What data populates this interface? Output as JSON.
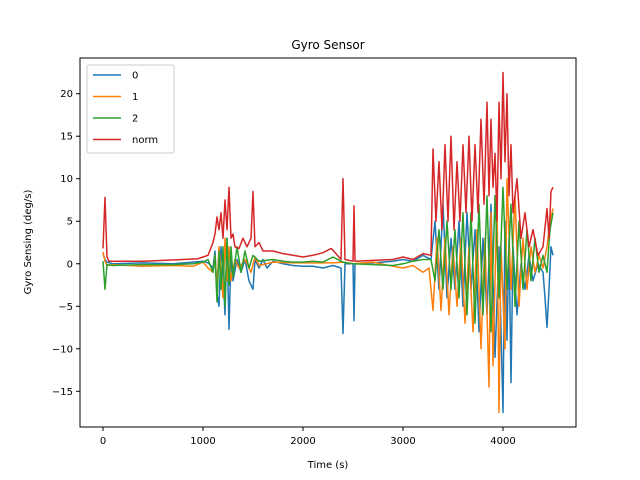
{
  "chart_data": {
    "type": "line",
    "title": "Gyro Sensor",
    "xlabel": "Time (s)",
    "ylabel": "Gyro Sensing (deg/s)",
    "xlim": [
      -230,
      4730
    ],
    "ylim": [
      -19.2,
      24.2
    ],
    "xticks": [
      0,
      1000,
      2000,
      3000,
      4000
    ],
    "yticks": [
      -15,
      -10,
      -5,
      0,
      5,
      10,
      15,
      20
    ],
    "grid": false,
    "legend_position": "top-left",
    "series": [
      {
        "name": "0",
        "color": "#1f77b4",
        "points": [
          [
            0,
            1.2
          ],
          [
            20,
            0.5
          ],
          [
            40,
            0.2
          ],
          [
            100,
            0.0
          ],
          [
            400,
            0.1
          ],
          [
            700,
            0.0
          ],
          [
            900,
            0.2
          ],
          [
            1000,
            0.3
          ],
          [
            1050,
            0.1
          ],
          [
            1100,
            -0.5
          ],
          [
            1120,
            1.5
          ],
          [
            1140,
            -3.5
          ],
          [
            1160,
            -5
          ],
          [
            1180,
            2
          ],
          [
            1200,
            -1
          ],
          [
            1220,
            -6
          ],
          [
            1240,
            3
          ],
          [
            1260,
            -7.7
          ],
          [
            1280,
            1
          ],
          [
            1300,
            -2
          ],
          [
            1340,
            0.5
          ],
          [
            1380,
            -1
          ],
          [
            1420,
            0.5
          ],
          [
            1460,
            -2
          ],
          [
            1500,
            -3
          ],
          [
            1520,
            0.5
          ],
          [
            1560,
            -0.5
          ],
          [
            1600,
            0.5
          ],
          [
            1640,
            -0.5
          ],
          [
            1700,
            0.3
          ],
          [
            1800,
            0.0
          ],
          [
            1900,
            -0.2
          ],
          [
            2000,
            -0.3
          ],
          [
            2100,
            -0.3
          ],
          [
            2200,
            -0.5
          ],
          [
            2300,
            -0.2
          ],
          [
            2380,
            -0.5
          ],
          [
            2400,
            -8.2
          ],
          [
            2420,
            0
          ],
          [
            2500,
            0
          ],
          [
            2510,
            -6.7
          ],
          [
            2520,
            0
          ],
          [
            2700,
            0.1
          ],
          [
            2900,
            0.3
          ],
          [
            3000,
            0.5
          ],
          [
            3100,
            0.3
          ],
          [
            3200,
            1
          ],
          [
            3280,
            0.5
          ],
          [
            3320,
            5
          ],
          [
            3360,
            -3
          ],
          [
            3400,
            7
          ],
          [
            3440,
            -4
          ],
          [
            3480,
            3
          ],
          [
            3520,
            -3
          ],
          [
            3560,
            5
          ],
          [
            3600,
            -5
          ],
          [
            3640,
            6
          ],
          [
            3680,
            -3
          ],
          [
            3720,
            4
          ],
          [
            3760,
            -8
          ],
          [
            3800,
            3
          ],
          [
            3840,
            -6
          ],
          [
            3880,
            7
          ],
          [
            3920,
            -11
          ],
          [
            3960,
            2
          ],
          [
            4000,
            -17.5
          ],
          [
            4020,
            5
          ],
          [
            4040,
            -9
          ],
          [
            4060,
            3
          ],
          [
            4080,
            -14
          ],
          [
            4100,
            2
          ],
          [
            4140,
            -6
          ],
          [
            4180,
            0
          ],
          [
            4220,
            -3
          ],
          [
            4260,
            1
          ],
          [
            4300,
            -2
          ],
          [
            4350,
            0
          ],
          [
            4400,
            -1
          ],
          [
            4420,
            -4
          ],
          [
            4440,
            -7.5
          ],
          [
            4460,
            -3
          ],
          [
            4480,
            2
          ],
          [
            4500,
            1
          ]
        ]
      },
      {
        "name": "1",
        "color": "#ff7f0e",
        "points": [
          [
            0,
            1.4
          ],
          [
            20,
            0.3
          ],
          [
            40,
            -0.2
          ],
          [
            100,
            -0.1
          ],
          [
            400,
            -0.3
          ],
          [
            700,
            -0.2
          ],
          [
            900,
            -0.3
          ],
          [
            1000,
            0.2
          ],
          [
            1050,
            -0.5
          ],
          [
            1100,
            -1
          ],
          [
            1120,
            1
          ],
          [
            1140,
            -3
          ],
          [
            1160,
            2
          ],
          [
            1200,
            -4
          ],
          [
            1220,
            3
          ],
          [
            1240,
            -2
          ],
          [
            1260,
            2
          ],
          [
            1280,
            -2
          ],
          [
            1320,
            0.5
          ],
          [
            1360,
            -0.5
          ],
          [
            1420,
            0.5
          ],
          [
            1480,
            -1
          ],
          [
            1520,
            0.8
          ],
          [
            1560,
            -0.2
          ],
          [
            1700,
            0.2
          ],
          [
            1900,
            0.1
          ],
          [
            2100,
            0.1
          ],
          [
            2300,
            0.1
          ],
          [
            2400,
            0.2
          ],
          [
            2500,
            0
          ],
          [
            2700,
            0.2
          ],
          [
            2900,
            -0.3
          ],
          [
            3000,
            -0.5
          ],
          [
            3100,
            -0.2
          ],
          [
            3200,
            -1
          ],
          [
            3260,
            -0.5
          ],
          [
            3300,
            -5.5
          ],
          [
            3340,
            3
          ],
          [
            3380,
            -5.5
          ],
          [
            3420,
            3
          ],
          [
            3460,
            -6
          ],
          [
            3500,
            2
          ],
          [
            3540,
            -5
          ],
          [
            3580,
            3
          ],
          [
            3620,
            -7
          ],
          [
            3660,
            2
          ],
          [
            3700,
            -8
          ],
          [
            3740,
            4
          ],
          [
            3780,
            -10
          ],
          [
            3820,
            3
          ],
          [
            3860,
            -14.5
          ],
          [
            3880,
            6
          ],
          [
            3900,
            -12
          ],
          [
            3940,
            8
          ],
          [
            3960,
            -17.5
          ],
          [
            3980,
            2
          ],
          [
            4020,
            -10
          ],
          [
            4040,
            10
          ],
          [
            4080,
            -3
          ],
          [
            4120,
            8
          ],
          [
            4160,
            -5
          ],
          [
            4200,
            3
          ],
          [
            4240,
            -3
          ],
          [
            4280,
            2
          ],
          [
            4320,
            -1
          ],
          [
            4360,
            1
          ],
          [
            4400,
            -0.5
          ],
          [
            4440,
            2
          ],
          [
            4470,
            5
          ],
          [
            4500,
            6.5
          ]
        ]
      },
      {
        "name": "2",
        "color": "#2ca02c",
        "points": [
          [
            0,
            0.3
          ],
          [
            20,
            -3
          ],
          [
            40,
            -0.1
          ],
          [
            100,
            -0.2
          ],
          [
            400,
            -0.1
          ],
          [
            700,
            -0.1
          ],
          [
            900,
            0.0
          ],
          [
            1000,
            0.2
          ],
          [
            1050,
            0.5
          ],
          [
            1100,
            -1
          ],
          [
            1120,
            1
          ],
          [
            1140,
            -4.5
          ],
          [
            1160,
            1.5
          ],
          [
            1180,
            -3
          ],
          [
            1200,
            2
          ],
          [
            1220,
            -5
          ],
          [
            1240,
            3
          ],
          [
            1260,
            -2.5
          ],
          [
            1280,
            2
          ],
          [
            1300,
            -1.5
          ],
          [
            1340,
            2
          ],
          [
            1380,
            -1
          ],
          [
            1420,
            1.5
          ],
          [
            1460,
            -0.5
          ],
          [
            1500,
            1
          ],
          [
            1560,
            0.3
          ],
          [
            1700,
            0.5
          ],
          [
            1800,
            0.3
          ],
          [
            1900,
            0.2
          ],
          [
            2000,
            0.2
          ],
          [
            2100,
            0.3
          ],
          [
            2200,
            0.2
          ],
          [
            2300,
            0.8
          ],
          [
            2380,
            0.3
          ],
          [
            2400,
            0.2
          ],
          [
            2500,
            0
          ],
          [
            2700,
            -0.1
          ],
          [
            2900,
            -0.2
          ],
          [
            3000,
            0
          ],
          [
            3100,
            0.3
          ],
          [
            3200,
            0.5
          ],
          [
            3280,
            0.5
          ],
          [
            3320,
            -2
          ],
          [
            3360,
            4
          ],
          [
            3400,
            -3
          ],
          [
            3440,
            5
          ],
          [
            3480,
            -3
          ],
          [
            3520,
            4
          ],
          [
            3560,
            -4
          ],
          [
            3600,
            6
          ],
          [
            3640,
            -6
          ],
          [
            3680,
            6
          ],
          [
            3720,
            -7
          ],
          [
            3760,
            7
          ],
          [
            3800,
            -6
          ],
          [
            3840,
            8
          ],
          [
            3880,
            -8
          ],
          [
            3920,
            8
          ],
          [
            3960,
            -4
          ],
          [
            4000,
            9
          ],
          [
            4040,
            -3
          ],
          [
            4080,
            7
          ],
          [
            4120,
            -5
          ],
          [
            4160,
            5
          ],
          [
            4200,
            -3
          ],
          [
            4240,
            4
          ],
          [
            4280,
            -2
          ],
          [
            4320,
            3
          ],
          [
            4360,
            -1
          ],
          [
            4400,
            1
          ],
          [
            4440,
            -1
          ],
          [
            4470,
            4
          ],
          [
            4500,
            6
          ]
        ]
      },
      {
        "name": "norm",
        "color": "#d62728",
        "points": [
          [
            0,
            1.8
          ],
          [
            20,
            7.8
          ],
          [
            40,
            0.8
          ],
          [
            60,
            0.3
          ],
          [
            200,
            0.3
          ],
          [
            400,
            0.3
          ],
          [
            600,
            0.4
          ],
          [
            800,
            0.5
          ],
          [
            950,
            0.6
          ],
          [
            1000,
            0.8
          ],
          [
            1050,
            1
          ],
          [
            1100,
            2.5
          ],
          [
            1120,
            3.5
          ],
          [
            1140,
            5.5
          ],
          [
            1160,
            4
          ],
          [
            1180,
            6
          ],
          [
            1200,
            3
          ],
          [
            1220,
            7.5
          ],
          [
            1240,
            4
          ],
          [
            1260,
            9
          ],
          [
            1280,
            3
          ],
          [
            1300,
            3.5
          ],
          [
            1320,
            2
          ],
          [
            1360,
            1.8
          ],
          [
            1400,
            3
          ],
          [
            1440,
            2
          ],
          [
            1480,
            3
          ],
          [
            1500,
            8.5
          ],
          [
            1520,
            2
          ],
          [
            1560,
            2.5
          ],
          [
            1600,
            1.5
          ],
          [
            1700,
            1.5
          ],
          [
            1800,
            1.2
          ],
          [
            1900,
            1
          ],
          [
            2000,
            0.8
          ],
          [
            2100,
            1
          ],
          [
            2200,
            1.3
          ],
          [
            2280,
            1.8
          ],
          [
            2300,
            1.6
          ],
          [
            2380,
            0.5
          ],
          [
            2400,
            10
          ],
          [
            2420,
            0.5
          ],
          [
            2500,
            0.3
          ],
          [
            2510,
            6.8
          ],
          [
            2520,
            0.3
          ],
          [
            2700,
            0.4
          ],
          [
            2900,
            0.5
          ],
          [
            3000,
            0.8
          ],
          [
            3100,
            0.5
          ],
          [
            3200,
            1.2
          ],
          [
            3280,
            1
          ],
          [
            3300,
            13.5
          ],
          [
            3330,
            5
          ],
          [
            3360,
            12
          ],
          [
            3390,
            4
          ],
          [
            3420,
            14
          ],
          [
            3450,
            5
          ],
          [
            3480,
            15
          ],
          [
            3510,
            4
          ],
          [
            3540,
            12
          ],
          [
            3570,
            5
          ],
          [
            3600,
            14
          ],
          [
            3630,
            6
          ],
          [
            3660,
            15
          ],
          [
            3690,
            5
          ],
          [
            3720,
            14
          ],
          [
            3750,
            6
          ],
          [
            3780,
            17
          ],
          [
            3810,
            7
          ],
          [
            3840,
            19
          ],
          [
            3860,
            8
          ],
          [
            3880,
            17
          ],
          [
            3900,
            9
          ],
          [
            3920,
            13
          ],
          [
            3940,
            5
          ],
          [
            3960,
            19
          ],
          [
            3980,
            10
          ],
          [
            4000,
            22.5
          ],
          [
            4020,
            12
          ],
          [
            4040,
            20
          ],
          [
            4060,
            8
          ],
          [
            4080,
            14
          ],
          [
            4100,
            6
          ],
          [
            4140,
            10
          ],
          [
            4180,
            3
          ],
          [
            4220,
            6
          ],
          [
            4260,
            2
          ],
          [
            4300,
            4
          ],
          [
            4350,
            1
          ],
          [
            4400,
            2
          ],
          [
            4440,
            6.5
          ],
          [
            4460,
            3
          ],
          [
            4480,
            8.5
          ],
          [
            4500,
            9
          ]
        ]
      }
    ]
  }
}
